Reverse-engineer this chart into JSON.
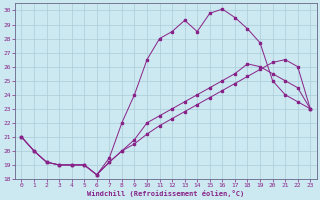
{
  "background_color": "#cce8f0",
  "grid_color": "#aaccd8",
  "line_color": "#882288",
  "xlabel": "Windchill (Refroidissement éolien,°C)",
  "xlim": [
    -0.5,
    23.5
  ],
  "ylim": [
    18,
    30.5
  ],
  "yticks": [
    18,
    19,
    20,
    21,
    22,
    23,
    24,
    25,
    26,
    27,
    28,
    29,
    30
  ],
  "xticks": [
    0,
    1,
    2,
    3,
    4,
    5,
    6,
    7,
    8,
    9,
    10,
    11,
    12,
    13,
    14,
    15,
    16,
    17,
    18,
    19,
    20,
    21,
    22,
    23
  ],
  "line1_x": [
    0,
    1,
    2,
    3,
    4,
    5,
    6,
    7,
    8,
    9,
    10,
    11,
    12,
    13,
    14,
    15,
    16,
    17,
    18,
    19,
    20,
    21,
    22,
    23
  ],
  "line1_y": [
    21.0,
    20.0,
    19.2,
    19.0,
    19.0,
    19.0,
    18.3,
    19.2,
    20.0,
    20.8,
    22.0,
    22.5,
    23.0,
    23.5,
    24.0,
    24.5,
    25.0,
    25.5,
    26.2,
    26.0,
    25.5,
    25.0,
    24.5,
    23.0
  ],
  "line2_x": [
    0,
    1,
    2,
    3,
    4,
    5,
    6,
    7,
    8,
    9,
    10,
    11,
    12,
    13,
    14,
    15,
    16,
    17,
    18,
    19,
    20,
    21,
    22,
    23
  ],
  "line2_y": [
    21.0,
    20.0,
    19.2,
    19.0,
    19.0,
    19.0,
    18.3,
    19.5,
    22.0,
    24.0,
    26.5,
    28.0,
    28.5,
    29.3,
    28.5,
    29.8,
    30.1,
    29.5,
    28.7,
    27.7,
    25.0,
    24.0,
    23.5,
    23.0
  ],
  "line3_x": [
    0,
    1,
    2,
    3,
    4,
    5,
    6,
    7,
    8,
    9,
    10,
    11,
    12,
    13,
    14,
    15,
    16,
    17,
    18,
    19,
    20,
    21,
    22,
    23
  ],
  "line3_y": [
    21.0,
    20.0,
    19.2,
    19.0,
    19.0,
    19.0,
    18.3,
    19.2,
    20.0,
    20.5,
    21.2,
    21.8,
    22.3,
    22.8,
    23.3,
    23.8,
    24.3,
    24.8,
    25.3,
    25.8,
    26.3,
    26.5,
    26.0,
    23.0
  ]
}
